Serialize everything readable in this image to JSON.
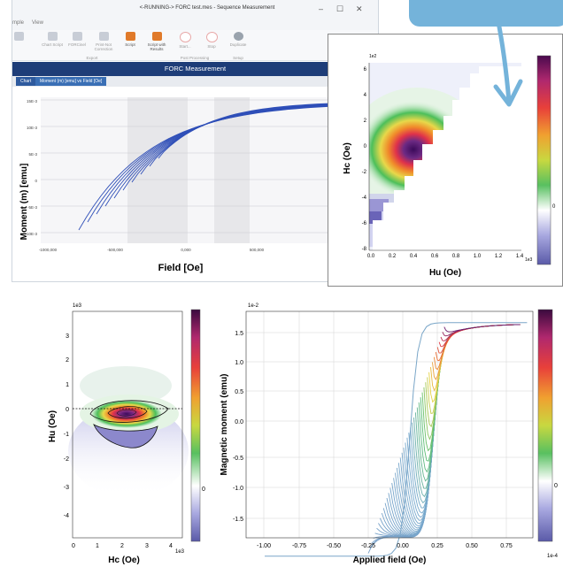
{
  "window": {
    "title": "<-RUNNING-> FORC test.mes - Sequence Measurement",
    "minimize": "–",
    "maximize": "☐",
    "close": "✕"
  },
  "menu": [
    "mple",
    "View"
  ],
  "ribbon": {
    "buttons": [
      {
        "label": "Chart Script",
        "icon": "chart-icon",
        "color": "#c8cdd6"
      },
      {
        "label": "FORCinel",
        "icon": "forc-icon",
        "color": "#c8cdd6"
      },
      {
        "label": "Print-Not Correction",
        "icon": "print-icon",
        "color": "#c8cdd6"
      },
      {
        "label": "Script",
        "icon": "script-icon",
        "color": "#e07a2a"
      },
      {
        "label": "Script with Results",
        "icon": "script-results-icon",
        "color": "#e07a2a"
      },
      {
        "label": "Start...",
        "icon": "start-icon",
        "color": "#e8a8a8"
      },
      {
        "label": "Stop",
        "icon": "stop-icon",
        "color": "#e8a8a8"
      },
      {
        "label": "Duplicate",
        "icon": "duplicate-icon",
        "color": "#9aa3ad"
      }
    ],
    "groups": [
      "Export",
      "Post Processing",
      "Setup"
    ]
  },
  "header": {
    "title": "FORC Measurement"
  },
  "tabs": [
    "Chart",
    "Moment (m) [emu] vs Field [Oe]"
  ],
  "main_chart": {
    "ylabel": "Moment (m) [emu]",
    "xlabel": "Field [Oe]",
    "yticks": [
      "15E-3",
      "10E-3",
      "5E-3",
      "0",
      "-5E-3",
      "-10E-3"
    ],
    "xticks": [
      "-1000,000",
      "-500,000",
      "0,000",
      "500,000"
    ]
  },
  "zoom_chart": {
    "multiplier_y": "1e2",
    "multiplier_x": "1e3",
    "ylabel": "Hc (Oe)",
    "xlabel": "Hu (Oe)",
    "yticks": [
      "6",
      "4",
      "2",
      "0",
      "-2",
      "-4",
      "-6",
      "-8"
    ],
    "xticks": [
      "0.0",
      "0.2",
      "0.4",
      "0.6",
      "0.8",
      "1.0",
      "1.2",
      "1.4"
    ],
    "colorbar_zero": "0"
  },
  "forc_chart": {
    "multiplier_y": "1e3",
    "multiplier_x": "1e3",
    "ylabel": "Hu (Oe)",
    "xlabel": "Hc (Oe)",
    "yticks": [
      "3",
      "2",
      "1",
      "0",
      "-1",
      "-2",
      "-3",
      "-4"
    ],
    "xticks": [
      "0",
      "1",
      "2",
      "3",
      "4"
    ],
    "colorbar_zero": "0"
  },
  "moment_chart": {
    "multiplier_y": "1e-2",
    "multiplier_cb": "1e-4",
    "ylabel": "Magnetic moment (emu)",
    "xlabel": "Applied field (Oe)",
    "yticks": [
      "1.5",
      "1.0",
      "0.5",
      "0.0",
      "-0.5",
      "-1.0",
      "-1.5"
    ],
    "xticks": [
      "-1.00",
      "-0.75",
      "-0.50",
      "-0.25",
      "0.00",
      "0.25",
      "0.50",
      "0.75"
    ],
    "colorbar_zero": "0"
  }
}
